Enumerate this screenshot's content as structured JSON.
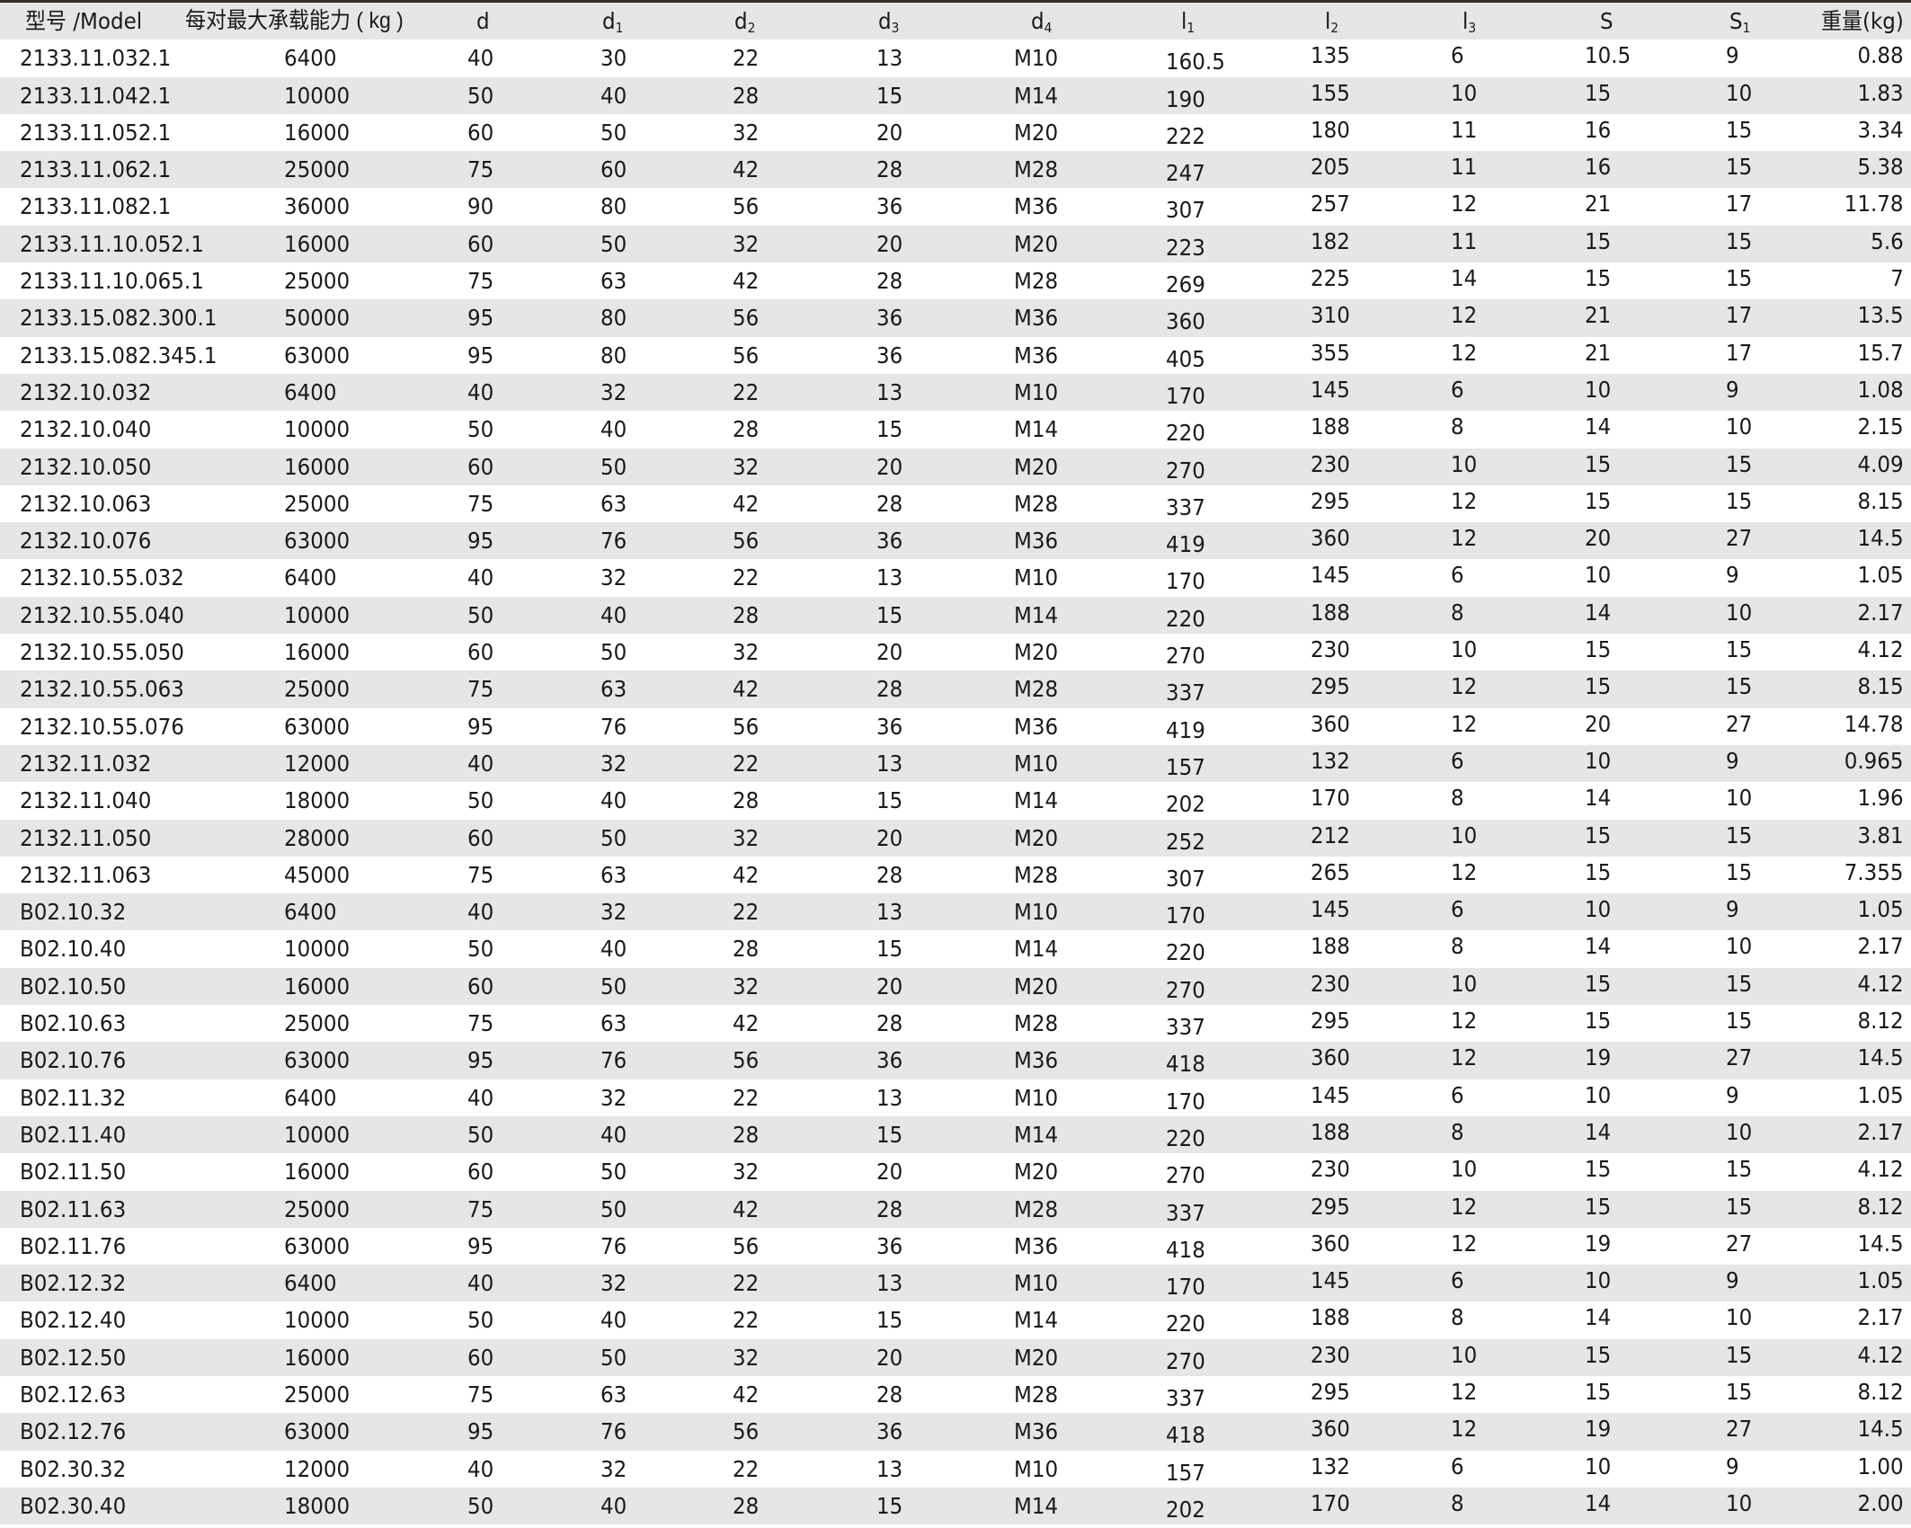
{
  "headers": [
    {
      "t": "型号 /Model"
    },
    {
      "t": "每对最大承载能力 ( kg )"
    },
    {
      "t": "d"
    },
    {
      "t": "d",
      "sub": "1"
    },
    {
      "t": "d",
      "sub": "2"
    },
    {
      "t": "d",
      "sub": "3"
    },
    {
      "t": "d",
      "sub": "4"
    },
    {
      "t": "l",
      "sub": "1"
    },
    {
      "t": "l",
      "sub": "2"
    },
    {
      "t": "l",
      "sub": "3"
    },
    {
      "t": "S"
    },
    {
      "t": "S",
      "sub": "1"
    },
    {
      "t": "重量(kg)"
    }
  ],
  "rows": [
    [
      "2133.11.032.1",
      "6400",
      "40",
      "30",
      "22",
      "13",
      "M10",
      "160.5",
      "135",
      "6",
      "10.5",
      "9",
      "0.88"
    ],
    [
      "2133.11.042.1",
      "10000",
      "50",
      "40",
      "28",
      "15",
      "M14",
      "190",
      "155",
      "10",
      "15",
      "10",
      "1.83"
    ],
    [
      "2133.11.052.1",
      "16000",
      "60",
      "50",
      "32",
      "20",
      "M20",
      "222",
      "180",
      "11",
      "16",
      "15",
      "3.34"
    ],
    [
      "2133.11.062.1",
      "25000",
      "75",
      "60",
      "42",
      "28",
      "M28",
      "247",
      "205",
      "11",
      "16",
      "15",
      "5.38"
    ],
    [
      "2133.11.082.1",
      "36000",
      "90",
      "80",
      "56",
      "36",
      "M36",
      "307",
      "257",
      "12",
      "21",
      "17",
      "11.78"
    ],
    [
      "2133.11.10.052.1",
      "16000",
      "60",
      "50",
      "32",
      "20",
      "M20",
      "223",
      "182",
      "11",
      "15",
      "15",
      "5.6"
    ],
    [
      "2133.11.10.065.1",
      "25000",
      "75",
      "63",
      "42",
      "28",
      "M28",
      "269",
      "225",
      "14",
      "15",
      "15",
      "7"
    ],
    [
      "2133.15.082.300.1",
      "50000",
      "95",
      "80",
      "56",
      "36",
      "M36",
      "360",
      "310",
      "12",
      "21",
      "17",
      "13.5"
    ],
    [
      "2133.15.082.345.1",
      "63000",
      "95",
      "80",
      "56",
      "36",
      "M36",
      "405",
      "355",
      "12",
      "21",
      "17",
      "15.7"
    ],
    [
      "2132.10.032",
      "6400",
      "40",
      "32",
      "22",
      "13",
      "M10",
      "170",
      "145",
      "6",
      "10",
      "9",
      "1.08"
    ],
    [
      "2132.10.040",
      "10000",
      "50",
      "40",
      "28",
      "15",
      "M14",
      "220",
      "188",
      "8",
      "14",
      "10",
      "2.15"
    ],
    [
      "2132.10.050",
      "16000",
      "60",
      "50",
      "32",
      "20",
      "M20",
      "270",
      "230",
      "10",
      "15",
      "15",
      "4.09"
    ],
    [
      "2132.10.063",
      "25000",
      "75",
      "63",
      "42",
      "28",
      "M28",
      "337",
      "295",
      "12",
      "15",
      "15",
      "8.15"
    ],
    [
      "2132.10.076",
      "63000",
      "95",
      "76",
      "56",
      "36",
      "M36",
      "419",
      "360",
      "12",
      "20",
      "27",
      "14.5"
    ],
    [
      "2132.10.55.032",
      "6400",
      "40",
      "32",
      "22",
      "13",
      "M10",
      "170",
      "145",
      "6",
      "10",
      "9",
      "1.05"
    ],
    [
      "2132.10.55.040",
      "10000",
      "50",
      "40",
      "28",
      "15",
      "M14",
      "220",
      "188",
      "8",
      "14",
      "10",
      "2.17"
    ],
    [
      "2132.10.55.050",
      "16000",
      "60",
      "50",
      "32",
      "20",
      "M20",
      "270",
      "230",
      "10",
      "15",
      "15",
      "4.12"
    ],
    [
      "2132.10.55.063",
      "25000",
      "75",
      "63",
      "42",
      "28",
      "M28",
      "337",
      "295",
      "12",
      "15",
      "15",
      "8.15"
    ],
    [
      "2132.10.55.076",
      "63000",
      "95",
      "76",
      "56",
      "36",
      "M36",
      "419",
      "360",
      "12",
      "20",
      "27",
      "14.78"
    ],
    [
      "2132.11.032",
      "12000",
      "40",
      "32",
      "22",
      "13",
      "M10",
      "157",
      "132",
      "6",
      "10",
      "9",
      "0.965"
    ],
    [
      "2132.11.040",
      "18000",
      "50",
      "40",
      "28",
      "15",
      "M14",
      "202",
      "170",
      "8",
      "14",
      "10",
      "1.96"
    ],
    [
      "2132.11.050",
      "28000",
      "60",
      "50",
      "32",
      "20",
      "M20",
      "252",
      "212",
      "10",
      "15",
      "15",
      "3.81"
    ],
    [
      "2132.11.063",
      "45000",
      "75",
      "63",
      "42",
      "28",
      "M28",
      "307",
      "265",
      "12",
      "15",
      "15",
      "7.355"
    ],
    [
      "B02.10.32",
      "6400",
      "40",
      "32",
      "22",
      "13",
      "M10",
      "170",
      "145",
      "6",
      "10",
      "9",
      "1.05"
    ],
    [
      "B02.10.40",
      "10000",
      "50",
      "40",
      "28",
      "15",
      "M14",
      "220",
      "188",
      "8",
      "14",
      "10",
      "2.17"
    ],
    [
      "B02.10.50",
      "16000",
      "60",
      "50",
      "32",
      "20",
      "M20",
      "270",
      "230",
      "10",
      "15",
      "15",
      "4.12"
    ],
    [
      "B02.10.63",
      "25000",
      "75",
      "63",
      "42",
      "28",
      "M28",
      "337",
      "295",
      "12",
      "15",
      "15",
      "8.12"
    ],
    [
      "B02.10.76",
      "63000",
      "95",
      "76",
      "56",
      "36",
      "M36",
      "418",
      "360",
      "12",
      "19",
      "27",
      "14.5"
    ],
    [
      "B02.11.32",
      "6400",
      "40",
      "32",
      "22",
      "13",
      "M10",
      "170",
      "145",
      "6",
      "10",
      "9",
      "1.05"
    ],
    [
      "B02.11.40",
      "10000",
      "50",
      "40",
      "28",
      "15",
      "M14",
      "220",
      "188",
      "8",
      "14",
      "10",
      "2.17"
    ],
    [
      "B02.11.50",
      "16000",
      "60",
      "50",
      "32",
      "20",
      "M20",
      "270",
      "230",
      "10",
      "15",
      "15",
      "4.12"
    ],
    [
      "B02.11.63",
      "25000",
      "75",
      "50",
      "42",
      "28",
      "M28",
      "337",
      "295",
      "12",
      "15",
      "15",
      "8.12"
    ],
    [
      "B02.11.76",
      "63000",
      "95",
      "76",
      "56",
      "36",
      "M36",
      "418",
      "360",
      "12",
      "19",
      "27",
      "14.5"
    ],
    [
      "B02.12.32",
      "6400",
      "40",
      "32",
      "22",
      "13",
      "M10",
      "170",
      "145",
      "6",
      "10",
      "9",
      "1.05"
    ],
    [
      "B02.12.40",
      "10000",
      "50",
      "40",
      "22",
      "15",
      "M14",
      "220",
      "188",
      "8",
      "14",
      "10",
      "2.17"
    ],
    [
      "B02.12.50",
      "16000",
      "60",
      "50",
      "32",
      "20",
      "M20",
      "270",
      "230",
      "10",
      "15",
      "15",
      "4.12"
    ],
    [
      "B02.12.63",
      "25000",
      "75",
      "63",
      "42",
      "28",
      "M28",
      "337",
      "295",
      "12",
      "15",
      "15",
      "8.12"
    ],
    [
      "B02.12.76",
      "63000",
      "95",
      "76",
      "56",
      "36",
      "M36",
      "418",
      "360",
      "12",
      "19",
      "27",
      "14.5"
    ],
    [
      "B02.30.32",
      "12000",
      "40",
      "32",
      "22",
      "13",
      "M10",
      "157",
      "132",
      "6",
      "10",
      "9",
      "1.00"
    ],
    [
      "B02.30.40",
      "18000",
      "50",
      "40",
      "28",
      "15",
      "M14",
      "202",
      "170",
      "8",
      "14",
      "10",
      "2.00"
    ]
  ]
}
